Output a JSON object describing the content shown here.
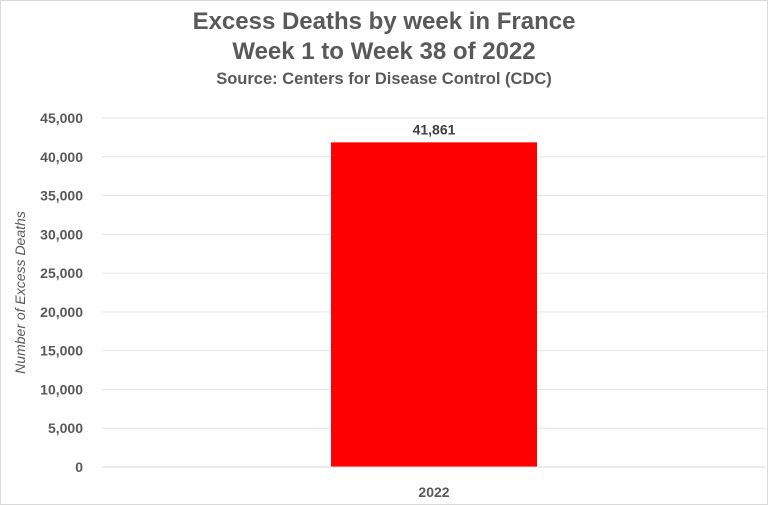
{
  "chart_data": {
    "type": "bar",
    "title": "Excess Deaths by week in France",
    "title_line2": "Week 1 to Week 38 of 2022",
    "subtitle": "Source: Centers for Disease Control (CDC)",
    "xlabel": "",
    "ylabel": "Number of Excess Deaths",
    "categories": [
      "2022"
    ],
    "values": [
      41861
    ],
    "data_labels": [
      "41,861"
    ],
    "ylim": [
      0,
      45000
    ],
    "yticks": [
      0,
      5000,
      10000,
      15000,
      20000,
      25000,
      30000,
      35000,
      40000,
      45000
    ],
    "ytick_labels": [
      "0",
      "5,000",
      "10,000",
      "15,000",
      "20,000",
      "25,000",
      "30,000",
      "35,000",
      "40,000",
      "45,000"
    ],
    "grid": true,
    "legend": "none",
    "bar_color": "#ff0000",
    "gridline_color": "#e6e6e6",
    "text_color": "#595959"
  }
}
